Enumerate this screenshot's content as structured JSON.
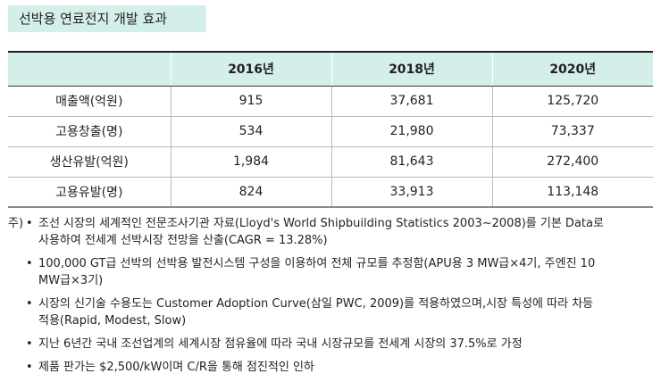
{
  "title": "선박용 연료전지 개발 효과",
  "table": {
    "headers": [
      "",
      "2016년",
      "2018년",
      "2020년"
    ],
    "rows": [
      {
        "label": "매출액(억원)",
        "values": [
          "915",
          "37,681",
          "125,720"
        ]
      },
      {
        "label": "고용창출(명)",
        "values": [
          "534",
          "21,980",
          "73,337"
        ]
      },
      {
        "label": "생산유발(억원)",
        "values": [
          "1,984",
          "81,643",
          "272,400"
        ]
      },
      {
        "label": "고용유발(명)",
        "values": [
          "824",
          "33,913",
          "113,148"
        ]
      }
    ]
  },
  "notes": {
    "prefix": "주)",
    "bullet": "•",
    "items": [
      "조선 시장의 세계적인 전문조사기관 자료(Lloyd's World Shipbuilding Statistics 2003~2008)를 기본 Data로\n사용하여 전세계 선박시장 전망을 산출(CAGR = 13.28%)",
      "100,000 GT급 선박의 선박용 발전시스템 구성을 이용하여 전체 규모를 추정함(APU용 3 MW급×4기, 주엔진 10\nMW급×3기)",
      "시장의 신기술 수용도는 Customer Adoption Curve(삼일 PWC, 2009)를 적용하였으며,시장 특성에 따라 차등\n적용(Rapid, Modest, Slow)",
      "지난 6년간 국내 조선업계의 세계시장 점유율에 따라 국내 시장규모를 전세계 시장의 37.5%로 가정",
      "제품 판가는 $2,500/kW이며 C/R을 통해 점진적인 인하"
    ]
  }
}
